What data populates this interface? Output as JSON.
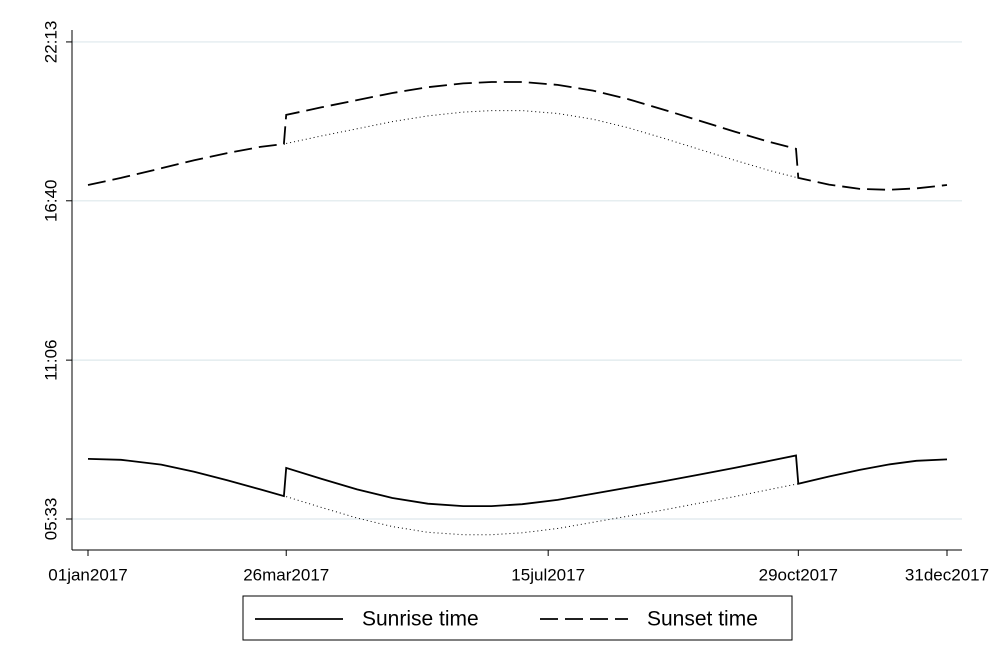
{
  "chart_data": {
    "type": "line",
    "x": [
      1,
      15,
      32,
      46,
      60,
      74,
      84,
      85,
      100,
      115,
      130,
      145,
      160,
      172,
      185,
      200,
      215,
      230,
      245,
      260,
      275,
      290,
      301,
      302,
      315,
      328,
      340,
      352,
      365
    ],
    "xlim": [
      -6,
      371
    ],
    "xticks": [
      {
        "value": 1,
        "label": "01jan2017"
      },
      {
        "value": 85,
        "label": "26mar2017"
      },
      {
        "value": 196,
        "label": "15jul2017"
      },
      {
        "value": 302,
        "label": "29oct2017"
      },
      {
        "value": 365,
        "label": "31dec2017"
      }
    ],
    "ylim": [
      268,
      1358
    ],
    "yticks": [
      {
        "value": 333,
        "label": "05:33"
      },
      {
        "value": 666,
        "label": "11:06"
      },
      {
        "value": 1000,
        "label": "16:40"
      },
      {
        "value": 1333,
        "label": "22:13"
      }
    ],
    "grid": true,
    "series": [
      {
        "name": "Sunrise time",
        "color": "#000000",
        "style": "solid",
        "values": [
          459,
          457,
          447,
          432,
          414,
          395,
          381,
          440,
          417,
          395,
          377,
          365,
          360,
          360,
          364,
          373,
          386,
          399,
          412,
          426,
          440,
          455,
          466,
          407,
          422,
          436,
          447,
          455,
          458
        ]
      },
      {
        "name": "Sunset time",
        "color": "#000000",
        "style": "dashed",
        "values": [
          1033,
          1048,
          1068,
          1085,
          1100,
          1113,
          1119,
          1180,
          1196,
          1211,
          1226,
          1238,
          1246,
          1249,
          1249,
          1243,
          1231,
          1213,
          1191,
          1168,
          1145,
          1123,
          1109,
          1048,
          1034,
          1025,
          1023,
          1026,
          1033
        ]
      },
      {
        "color": "#000000",
        "style": "dotted",
        "values": [
          null,
          null,
          null,
          null,
          null,
          null,
          null,
          380,
          357,
          335,
          317,
          305,
          300,
          300,
          304,
          313,
          326,
          339,
          352,
          366,
          380,
          395,
          406,
          407,
          null,
          null,
          null,
          null,
          null
        ]
      },
      {
        "color": "#000000",
        "style": "dotted",
        "values": [
          null,
          null,
          null,
          null,
          null,
          null,
          null,
          1120,
          1136,
          1151,
          1166,
          1178,
          1186,
          1189,
          1189,
          1183,
          1171,
          1153,
          1131,
          1108,
          1085,
          1063,
          1049,
          1048,
          null,
          null,
          null,
          null,
          null
        ]
      }
    ]
  }
}
